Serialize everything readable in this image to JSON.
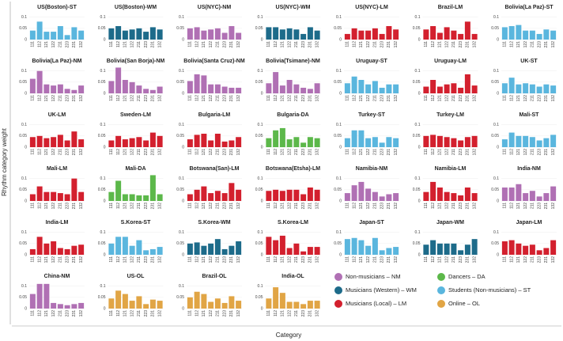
{
  "chart_data": {
    "type": "bar",
    "y_label": "Rhythm category weight",
    "x_label": "Category",
    "categories": [
      "111",
      "112",
      "121",
      "122",
      "211",
      "223",
      "231",
      "132"
    ],
    "ylim": [
      0,
      0.12
    ],
    "yticks": [
      0,
      0.05,
      0.1
    ],
    "legend": [
      {
        "name": "Non-musicians – NM",
        "color": "#b070b4"
      },
      {
        "name": "Musicians (Western) – WM",
        "color": "#1d6b8a"
      },
      {
        "name": "Musicians (Local) – LM",
        "color": "#d3202e"
      },
      {
        "name": "Dancers – DA",
        "color": "#5cb84a"
      },
      {
        "name": "Students (Non-musicians) – ST",
        "color": "#5ab6de"
      },
      {
        "name": "Online – OL",
        "color": "#e1a545"
      }
    ],
    "panels": [
      {
        "title": "US(Boston)-ST",
        "color": "#5ab6de",
        "values": [
          0.04,
          0.08,
          0.035,
          0.035,
          0.06,
          0.02,
          0.055,
          0.04
        ]
      },
      {
        "title": "US(Boston)-WM",
        "color": "#1d6b8a",
        "values": [
          0.05,
          0.06,
          0.04,
          0.045,
          0.05,
          0.035,
          0.055,
          0.045
        ]
      },
      {
        "title": "US(NYC)-NM",
        "color": "#b070b4",
        "values": [
          0.05,
          0.055,
          0.04,
          0.045,
          0.05,
          0.03,
          0.06,
          0.03
        ]
      },
      {
        "title": "US(NYC)-WM",
        "color": "#1d6b8a",
        "values": [
          0.055,
          0.055,
          0.045,
          0.05,
          0.045,
          0.025,
          0.055,
          0.04
        ]
      },
      {
        "title": "US(NYC)-LM",
        "color": "#d3202e",
        "values": [
          0.025,
          0.05,
          0.04,
          0.04,
          0.05,
          0.025,
          0.06,
          0.045
        ]
      },
      {
        "title": "Brazil-LM",
        "color": "#d3202e",
        "values": [
          0.045,
          0.06,
          0.03,
          0.055,
          0.04,
          0.025,
          0.08,
          0.025
        ]
      },
      {
        "title": "Bolivia(La Paz)-ST",
        "color": "#5ab6de",
        "values": [
          0.055,
          0.06,
          0.065,
          0.04,
          0.04,
          0.025,
          0.045,
          0.04
        ]
      },
      {
        "title": "Bolivia(La Paz)-NM",
        "color": "#b070b4",
        "values": [
          0.065,
          0.1,
          0.04,
          0.035,
          0.04,
          0.02,
          0.015,
          0.035
        ]
      },
      {
        "title": "Bolivia(San Borja)-NM",
        "color": "#b070b4",
        "values": [
          0.055,
          0.115,
          0.06,
          0.05,
          0.035,
          0.02,
          0.015,
          0.03
        ]
      },
      {
        "title": "Bolivia(Santa Cruz)-NM",
        "color": "#b070b4",
        "values": [
          0.055,
          0.085,
          0.08,
          0.04,
          0.04,
          0.03,
          0.025,
          0.025
        ]
      },
      {
        "title": "Bolivia(Tsimane)-NM",
        "color": "#b070b4",
        "values": [
          0.045,
          0.095,
          0.035,
          0.06,
          0.04,
          0.025,
          0.02,
          0.045
        ]
      },
      {
        "title": "Uruguay-ST",
        "color": "#5ab6de",
        "values": [
          0.045,
          0.075,
          0.06,
          0.04,
          0.055,
          0.025,
          0.04,
          0.04
        ]
      },
      {
        "title": "Uruguay-LM",
        "color": "#d3202e",
        "values": [
          0.03,
          0.06,
          0.03,
          0.04,
          0.045,
          0.025,
          0.085,
          0.035
        ]
      },
      {
        "title": "UK-ST",
        "color": "#5ab6de",
        "values": [
          0.045,
          0.07,
          0.04,
          0.045,
          0.04,
          0.03,
          0.04,
          0.035
        ]
      },
      {
        "title": "UK-LM",
        "color": "#d3202e",
        "values": [
          0.045,
          0.05,
          0.04,
          0.045,
          0.055,
          0.03,
          0.07,
          0.035
        ]
      },
      {
        "title": "Sweden-LM",
        "color": "#d3202e",
        "values": [
          0.03,
          0.05,
          0.035,
          0.04,
          0.045,
          0.03,
          0.065,
          0.05
        ]
      },
      {
        "title": "Bulgaria-LM",
        "color": "#d3202e",
        "values": [
          0.035,
          0.055,
          0.06,
          0.03,
          0.06,
          0.025,
          0.03,
          0.045
        ]
      },
      {
        "title": "Bulgaria-DA",
        "color": "#5cb84a",
        "values": [
          0.04,
          0.075,
          0.085,
          0.035,
          0.045,
          0.02,
          0.045,
          0.04
        ]
      },
      {
        "title": "Turkey-ST",
        "color": "#5ab6de",
        "values": [
          0.04,
          0.075,
          0.075,
          0.04,
          0.045,
          0.02,
          0.045,
          0.04
        ]
      },
      {
        "title": "Turkey-LM",
        "color": "#d3202e",
        "values": [
          0.05,
          0.055,
          0.05,
          0.045,
          0.04,
          0.03,
          0.045,
          0.05
        ]
      },
      {
        "title": "Mali-ST",
        "color": "#5ab6de",
        "values": [
          0.035,
          0.065,
          0.05,
          0.05,
          0.045,
          0.03,
          0.04,
          0.055
        ]
      },
      {
        "title": "Mali-LM",
        "color": "#d3202e",
        "values": [
          0.03,
          0.065,
          0.04,
          0.04,
          0.035,
          0.03,
          0.1,
          0.04
        ]
      },
      {
        "title": "Mali-DA",
        "color": "#5cb84a",
        "values": [
          0.04,
          0.09,
          0.03,
          0.03,
          0.025,
          0.025,
          0.115,
          0.03
        ]
      },
      {
        "title": "Botswana(San)-LM",
        "color": "#d3202e",
        "values": [
          0.03,
          0.05,
          0.065,
          0.035,
          0.045,
          0.035,
          0.08,
          0.05
        ]
      },
      {
        "title": "Botswana(Etsha)-LM",
        "color": "#d3202e",
        "values": [
          0.045,
          0.05,
          0.045,
          0.05,
          0.05,
          0.03,
          0.06,
          0.05
        ]
      },
      {
        "title": "Namibia-NM",
        "color": "#b070b4",
        "values": [
          0.035,
          0.07,
          0.085,
          0.055,
          0.04,
          0.02,
          0.03,
          0.035
        ]
      },
      {
        "title": "Namibia-LM",
        "color": "#d3202e",
        "values": [
          0.04,
          0.085,
          0.06,
          0.04,
          0.035,
          0.025,
          0.06,
          0.035
        ]
      },
      {
        "title": "India-NM",
        "color": "#b070b4",
        "values": [
          0.06,
          0.06,
          0.075,
          0.035,
          0.045,
          0.02,
          0.035,
          0.065
        ]
      },
      {
        "title": "India-LM",
        "color": "#d3202e",
        "values": [
          0.025,
          0.08,
          0.05,
          0.06,
          0.03,
          0.025,
          0.04,
          0.045
        ]
      },
      {
        "title": "S.Korea-ST",
        "color": "#5ab6de",
        "values": [
          0.05,
          0.08,
          0.08,
          0.04,
          0.065,
          0.02,
          0.025,
          0.035
        ]
      },
      {
        "title": "S.Korea-WM",
        "color": "#1d6b8a",
        "values": [
          0.05,
          0.055,
          0.04,
          0.05,
          0.07,
          0.025,
          0.04,
          0.06
        ]
      },
      {
        "title": "S.Korea-LM",
        "color": "#d3202e",
        "values": [
          0.08,
          0.065,
          0.085,
          0.03,
          0.05,
          0.015,
          0.035,
          0.035
        ]
      },
      {
        "title": "Japan-ST",
        "color": "#5ab6de",
        "values": [
          0.07,
          0.075,
          0.065,
          0.04,
          0.075,
          0.02,
          0.03,
          0.035
        ]
      },
      {
        "title": "Japan-WM",
        "color": "#1d6b8a",
        "values": [
          0.045,
          0.065,
          0.05,
          0.05,
          0.05,
          0.02,
          0.045,
          0.07
        ]
      },
      {
        "title": "Japan-LM",
        "color": "#d3202e",
        "values": [
          0.06,
          0.065,
          0.05,
          0.04,
          0.045,
          0.02,
          0.03,
          0.065
        ]
      },
      {
        "title": "China-NM",
        "color": "#b070b4",
        "values": [
          0.065,
          0.11,
          0.11,
          0.025,
          0.02,
          0.015,
          0.02,
          0.025
        ]
      },
      {
        "title": "US-OL",
        "color": "#e1a545",
        "values": [
          0.045,
          0.08,
          0.065,
          0.035,
          0.055,
          0.02,
          0.04,
          0.035
        ]
      },
      {
        "title": "Brazil-OL",
        "color": "#e1a545",
        "values": [
          0.05,
          0.075,
          0.065,
          0.03,
          0.045,
          0.025,
          0.055,
          0.035
        ]
      },
      {
        "title": "India-OL",
        "color": "#e1a545",
        "values": [
          0.045,
          0.095,
          0.07,
          0.03,
          0.03,
          0.02,
          0.035,
          0.035
        ]
      }
    ]
  }
}
